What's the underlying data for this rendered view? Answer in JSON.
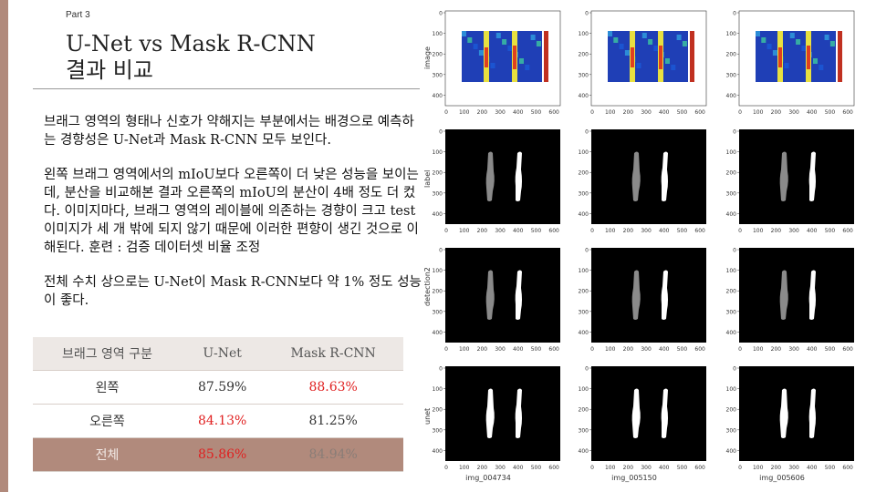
{
  "header": {
    "part": "Part 3",
    "title_line1": "U-Net vs Mask R-CNN",
    "title_line2": "결과 비교"
  },
  "body": {
    "p1": "브래그 영역의 형태나 신호가 약해지는 부분에서는 배경으로 예측하는 경향성은 U-Net과 Mask R-CNN 모두 보인다.",
    "p2": "왼쪽 브래그 영역에서의 mIoU보다 오른쪽이 더 낮은 성능을 보이는데, 분산을 비교해본 결과 오른쪽의 mIoU의 분산이 4배 정도 더 컸다. 이미지마다, 브래그 영역의 레이블에 의존하는 경향이 크고 test 이미지가 세 개 밖에 되지 않기 때문에 이러한 편향이 생긴 것으로 이해된다. 훈련 : 검증 데이터셋 비율 조정",
    "p3": "전체 수치 상으로는 U-Net이 Mask R-CNN보다 약 1% 정도 성능이 좋다."
  },
  "table": {
    "headers": [
      "브래그 영역 구분",
      "U-Net",
      "Mask R-CNN"
    ],
    "rows": [
      [
        "왼쪽",
        "87.59%",
        "88.63%"
      ],
      [
        "오른쪽",
        "84.13%",
        "81.25%"
      ],
      [
        "전체",
        "85.86%",
        "84.94%"
      ]
    ]
  },
  "figure": {
    "row_labels": [
      "image",
      "label",
      "detection2",
      "unet"
    ],
    "col_labels": [
      "img_004734",
      "img_005150",
      "img_005606"
    ],
    "x_ticks": [
      "0",
      "100",
      "200",
      "300",
      "400",
      "500",
      "600"
    ],
    "y_ticks": [
      "0",
      "100",
      "200",
      "300",
      "400"
    ]
  },
  "colors": {
    "accent": "#b18a7c",
    "highlight_red": "#e02020"
  }
}
